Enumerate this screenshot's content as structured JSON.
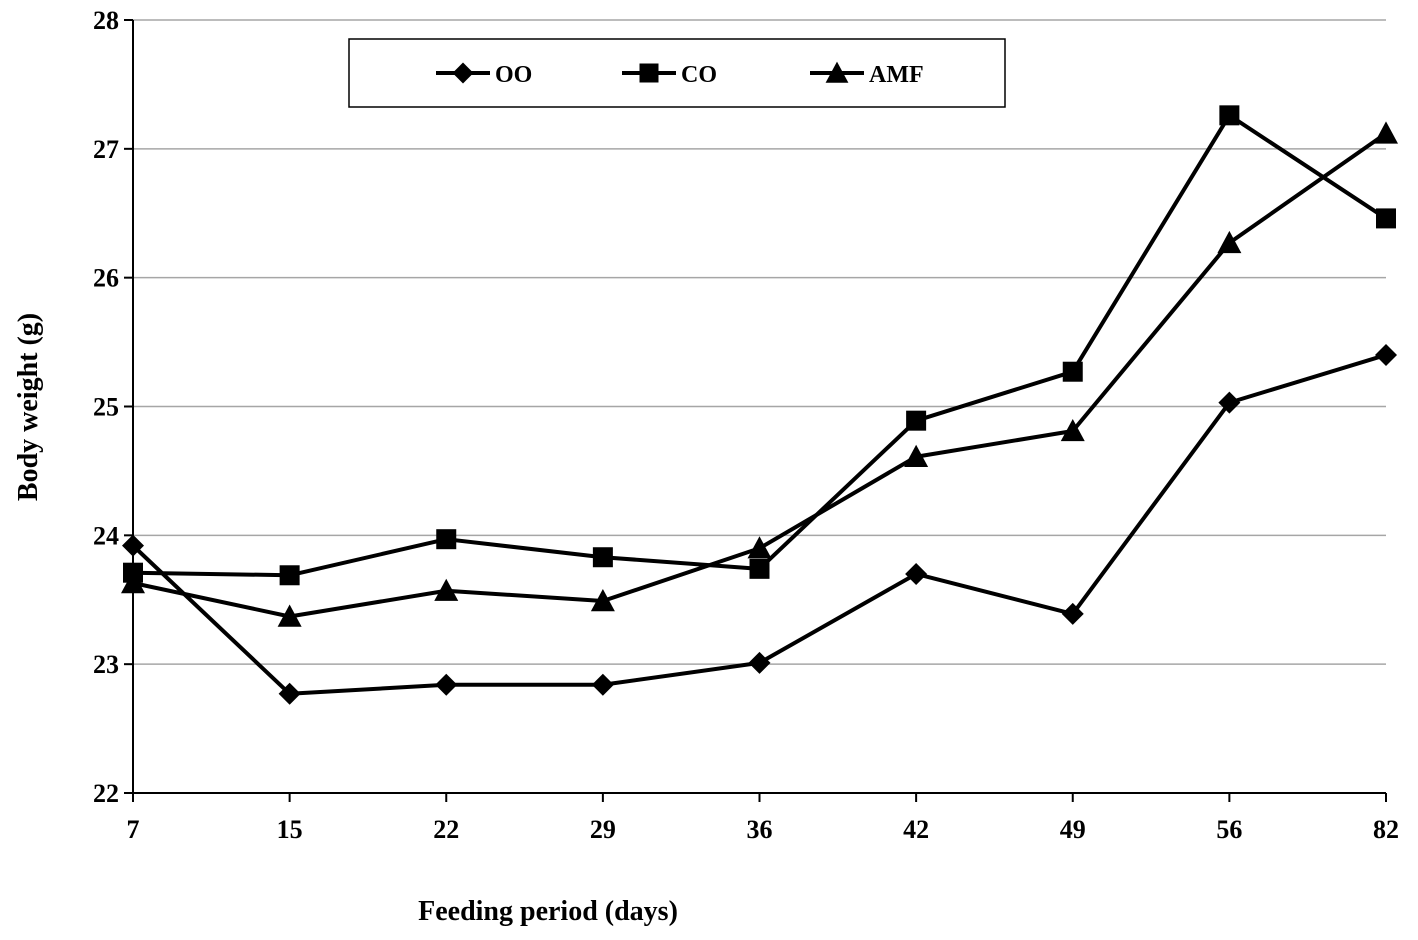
{
  "chart_data": {
    "type": "line",
    "title": "",
    "xlabel": "Feeding period (days)",
    "ylabel": "Body weight (g)",
    "categories": [
      "7",
      "15",
      "22",
      "29",
      "36",
      "42",
      "49",
      "56",
      "82"
    ],
    "ylim": [
      22,
      28
    ],
    "yticks": [
      22,
      23,
      24,
      25,
      26,
      27,
      28
    ],
    "grid": true,
    "legend_position": "top-center",
    "series": [
      {
        "name": "OO",
        "marker": "diamond",
        "values": [
          23.92,
          22.77,
          22.84,
          22.84,
          23.01,
          23.7,
          23.39,
          25.03,
          25.4
        ]
      },
      {
        "name": "CO",
        "marker": "square",
        "values": [
          23.71,
          23.69,
          23.97,
          23.83,
          23.74,
          24.89,
          25.27,
          27.26,
          26.46
        ]
      },
      {
        "name": "AMF",
        "marker": "triangle",
        "values": [
          23.63,
          23.37,
          23.57,
          23.49,
          23.9,
          24.61,
          24.81,
          26.27,
          27.12
        ]
      }
    ],
    "colors": {
      "line": "#000000",
      "grid": "#a6a6a6",
      "axis": "#000000"
    }
  }
}
